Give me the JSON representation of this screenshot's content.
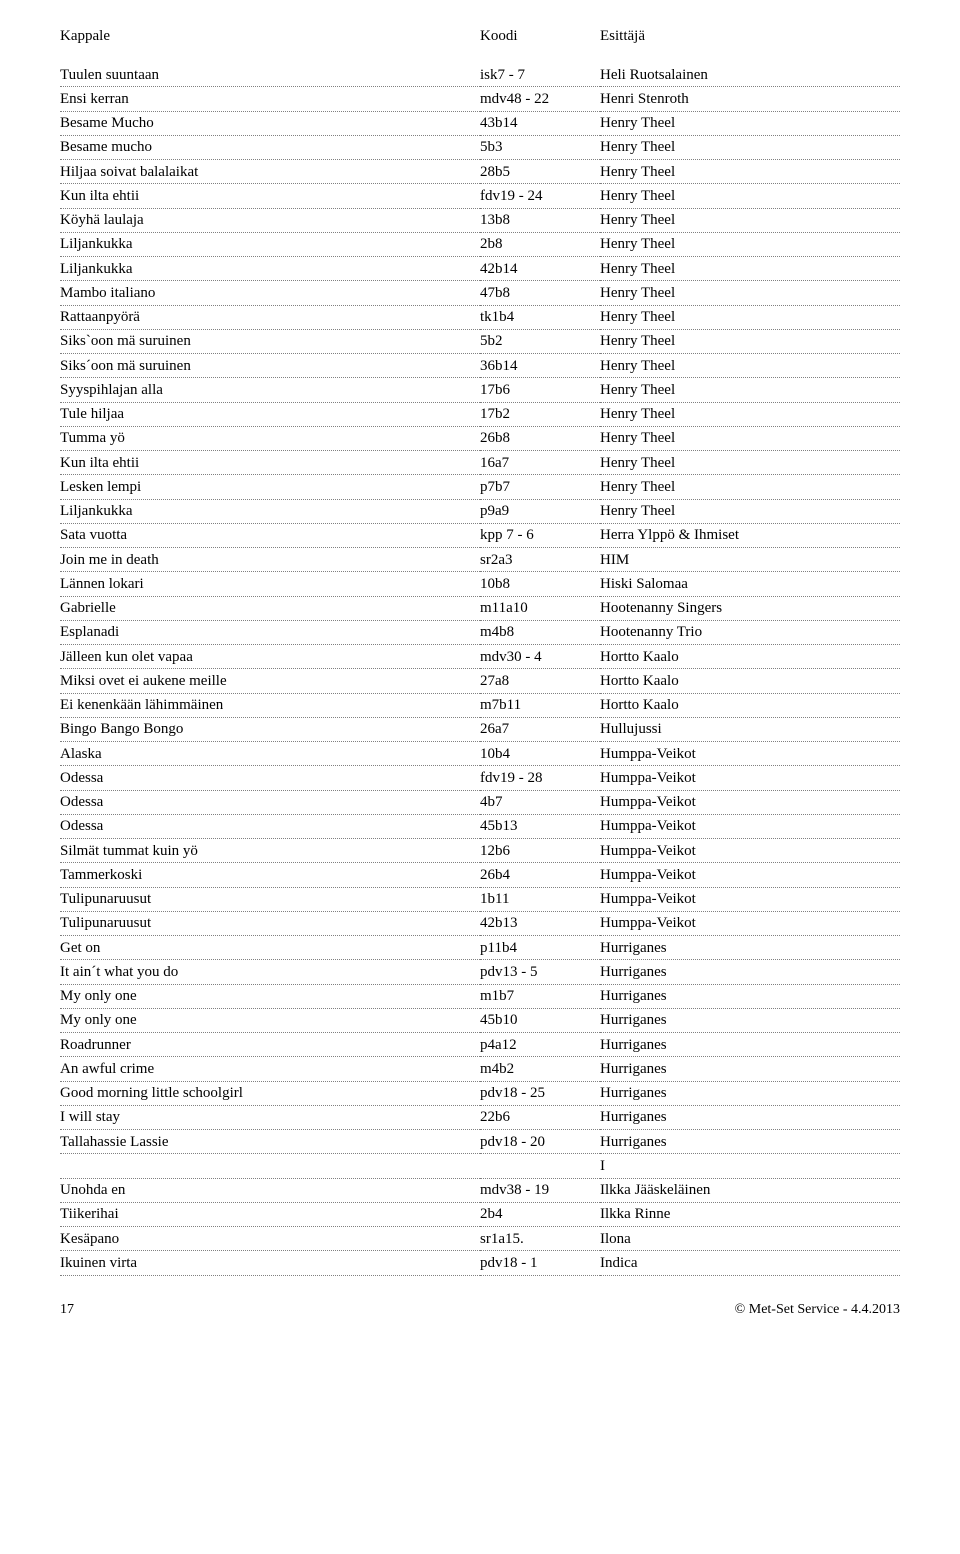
{
  "header": {
    "col1": "Kappale",
    "col2": "Koodi",
    "col3": "Esittäjä"
  },
  "rows": [
    {
      "kappale": "Tuulen suuntaan",
      "koodi": "isk7 - 7",
      "esittaja": "Heli Ruotsalainen"
    },
    {
      "kappale": "Ensi kerran",
      "koodi": "mdv48 - 22",
      "esittaja": "Henri Stenroth"
    },
    {
      "kappale": "Besame Mucho",
      "koodi": "43b14",
      "esittaja": "Henry Theel"
    },
    {
      "kappale": "Besame mucho",
      "koodi": "5b3",
      "esittaja": "Henry Theel"
    },
    {
      "kappale": "Hiljaa soivat balalaikat",
      "koodi": "28b5",
      "esittaja": "Henry Theel"
    },
    {
      "kappale": "Kun ilta ehtii",
      "koodi": "fdv19 - 24",
      "esittaja": "Henry Theel"
    },
    {
      "kappale": "Köyhä laulaja",
      "koodi": "13b8",
      "esittaja": "Henry Theel"
    },
    {
      "kappale": "Liljankukka",
      "koodi": "2b8",
      "esittaja": "Henry Theel"
    },
    {
      "kappale": "Liljankukka",
      "koodi": "42b14",
      "esittaja": "Henry Theel"
    },
    {
      "kappale": "Mambo italiano",
      "koodi": "47b8",
      "esittaja": "Henry Theel"
    },
    {
      "kappale": "Rattaanpyörä",
      "koodi": "tk1b4",
      "esittaja": "Henry Theel"
    },
    {
      "kappale": "Siks`oon mä suruinen",
      "koodi": "5b2",
      "esittaja": "Henry Theel"
    },
    {
      "kappale": "Siks´oon mä suruinen",
      "koodi": "36b14",
      "esittaja": "Henry Theel"
    },
    {
      "kappale": "Syyspihlajan alla",
      "koodi": "17b6",
      "esittaja": "Henry Theel"
    },
    {
      "kappale": "Tule hiljaa",
      "koodi": "17b2",
      "esittaja": "Henry Theel"
    },
    {
      "kappale": "Tumma yö",
      "koodi": "26b8",
      "esittaja": "Henry Theel"
    },
    {
      "kappale": "Kun ilta ehtii",
      "koodi": "16a7",
      "esittaja": "Henry Theel"
    },
    {
      "kappale": "Lesken lempi",
      "koodi": "p7b7",
      "esittaja": "Henry Theel"
    },
    {
      "kappale": "Liljankukka",
      "koodi": "p9a9",
      "esittaja": "Henry Theel"
    },
    {
      "kappale": "Sata vuotta",
      "koodi": "kpp 7 - 6",
      "esittaja": "Herra Ylppö & Ihmiset"
    },
    {
      "kappale": "Join me in death",
      "koodi": "sr2a3",
      "esittaja": "HIM"
    },
    {
      "kappale": "Lännen lokari",
      "koodi": "10b8",
      "esittaja": "Hiski Salomaa"
    },
    {
      "kappale": "Gabrielle",
      "koodi": "m11a10",
      "esittaja": "Hootenanny Singers"
    },
    {
      "kappale": "Esplanadi",
      "koodi": "m4b8",
      "esittaja": "Hootenanny Trio"
    },
    {
      "kappale": "Jälleen kun olet vapaa",
      "koodi": "mdv30 - 4",
      "esittaja": "Hortto Kaalo"
    },
    {
      "kappale": "Miksi ovet ei aukene meille",
      "koodi": "27a8",
      "esittaja": "Hortto Kaalo"
    },
    {
      "kappale": "Ei kenenkään lähimmäinen",
      "koodi": "m7b11",
      "esittaja": "Hortto Kaalo"
    },
    {
      "kappale": "Bingo Bango Bongo",
      "koodi": "26a7",
      "esittaja": "Hullujussi"
    },
    {
      "kappale": "Alaska",
      "koodi": "10b4",
      "esittaja": "Humppa-Veikot"
    },
    {
      "kappale": "Odessa",
      "koodi": "fdv19 - 28",
      "esittaja": "Humppa-Veikot"
    },
    {
      "kappale": "Odessa",
      "koodi": "4b7",
      "esittaja": "Humppa-Veikot"
    },
    {
      "kappale": "Odessa",
      "koodi": "45b13",
      "esittaja": "Humppa-Veikot"
    },
    {
      "kappale": "Silmät tummat kuin yö",
      "koodi": "12b6",
      "esittaja": "Humppa-Veikot"
    },
    {
      "kappale": "Tammerkoski",
      "koodi": "26b4",
      "esittaja": "Humppa-Veikot"
    },
    {
      "kappale": "Tulipunaruusut",
      "koodi": "1b11",
      "esittaja": "Humppa-Veikot"
    },
    {
      "kappale": "Tulipunaruusut",
      "koodi": "42b13",
      "esittaja": "Humppa-Veikot"
    },
    {
      "kappale": "Get on",
      "koodi": "p11b4",
      "esittaja": "Hurriganes"
    },
    {
      "kappale": "It ain´t what you do",
      "koodi": "pdv13 - 5",
      "esittaja": "Hurriganes"
    },
    {
      "kappale": "My only one",
      "koodi": "m1b7",
      "esittaja": "Hurriganes"
    },
    {
      "kappale": "My only one",
      "koodi": "45b10",
      "esittaja": "Hurriganes"
    },
    {
      "kappale": "Roadrunner",
      "koodi": "p4a12",
      "esittaja": "Hurriganes"
    },
    {
      "kappale": "An awful crime",
      "koodi": "m4b2",
      "esittaja": "Hurriganes"
    },
    {
      "kappale": "Good morning little schoolgirl",
      "koodi": "pdv18 - 25",
      "esittaja": "Hurriganes"
    },
    {
      "kappale": "I will stay",
      "koodi": "22b6",
      "esittaja": "Hurriganes"
    },
    {
      "kappale": "Tallahassie Lassie",
      "koodi": "pdv18 - 20",
      "esittaja": "Hurriganes"
    },
    {
      "kappale": "",
      "koodi": "",
      "esittaja": "I"
    },
    {
      "kappale": "Unohda en",
      "koodi": "mdv38 - 19",
      "esittaja": "Ilkka Jääskeläinen"
    },
    {
      "kappale": "Tiikerihai",
      "koodi": "2b4",
      "esittaja": "Ilkka Rinne"
    },
    {
      "kappale": "Kesäpano",
      "koodi": "sr1a15.",
      "esittaja": "Ilona"
    },
    {
      "kappale": "Ikuinen virta",
      "koodi": "pdv18 - 1",
      "esittaja": "Indica"
    }
  ],
  "footer": {
    "page": "17",
    "copyright": "© Met-Set Service - 4.4.2013"
  }
}
